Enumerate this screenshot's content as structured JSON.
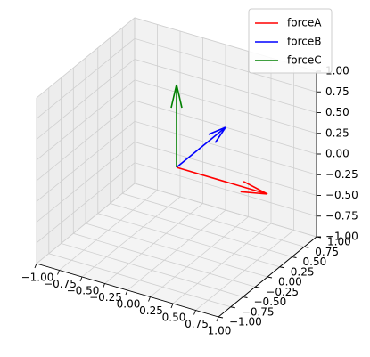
{
  "chart_data": {
    "type": "quiver3d",
    "title": "",
    "xlabel": "",
    "ylabel": "",
    "zlabel": "",
    "xlim": [
      -1,
      1
    ],
    "ylim": [
      -1,
      1
    ],
    "zlim": [
      -1,
      1
    ],
    "grid": true,
    "legend_position": "upper-right",
    "x_ticks": [
      "−1.00",
      "−0.75",
      "−0.50",
      "−0.25",
      "0.00",
      "0.25",
      "0.50",
      "0.75",
      "1.00"
    ],
    "y_ticks": [
      "−1.00",
      "−0.75",
      "−0.50",
      "−0.25",
      "0.00",
      "0.25",
      "0.50",
      "0.75",
      "1.00"
    ],
    "z_ticks": [
      "−1.00",
      "−0.75",
      "−0.50",
      "−0.25",
      "0.00",
      "0.25",
      "0.50",
      "0.75",
      "1.00"
    ],
    "series": [
      {
        "name": "forceA",
        "color": "#ff0000",
        "origin": [
          0,
          0,
          0
        ],
        "vector": [
          1,
          0,
          0
        ]
      },
      {
        "name": "forceB",
        "color": "#0000ff",
        "origin": [
          0,
          0,
          0
        ],
        "vector": [
          0,
          1,
          0
        ]
      },
      {
        "name": "forceC",
        "color": "#008000",
        "origin": [
          0,
          0,
          0
        ],
        "vector": [
          0,
          0,
          1
        ]
      }
    ]
  }
}
